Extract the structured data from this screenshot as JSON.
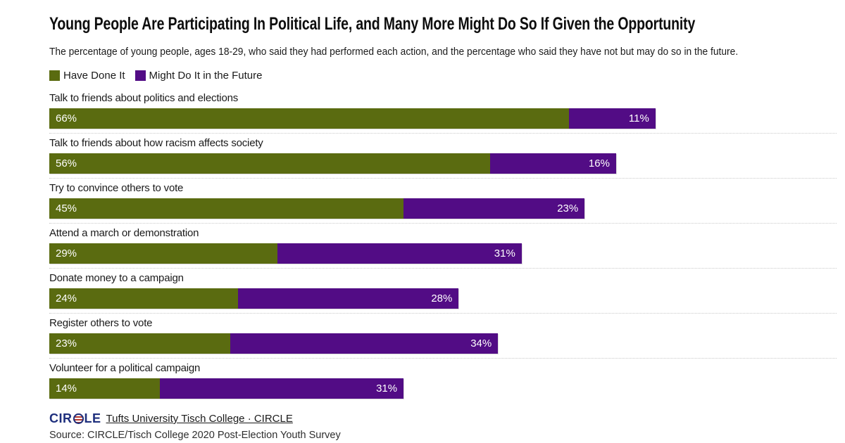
{
  "title": "Young People Are Participating In Political Life, and Many More Might Do So If Given the Opportunity",
  "subtitle": "The percentage of young people, ages 18-29, who said they had performed each action, and the percentage who said they have not but may do so in the future.",
  "legend": [
    {
      "label": "Have Done It",
      "color": "#5a6b10"
    },
    {
      "label": "Might Do It in the Future",
      "color": "#520c85"
    }
  ],
  "chart_data": {
    "type": "bar",
    "orientation": "horizontal",
    "stacked": true,
    "title": "Young People Are Participating In Political Life, and Many More Might Do So If Given the Opportunity",
    "categories": [
      "Talk to friends about politics and elections",
      "Talk to friends about how racism affects society",
      "Try to convince others to vote",
      "Attend a march or demonstration",
      "Donate money to a campaign",
      "Register others to vote",
      "Volunteer for a political campaign"
    ],
    "series": [
      {
        "name": "Have Done It",
        "color": "#5a6b10",
        "values": [
          66,
          56,
          45,
          29,
          24,
          23,
          14
        ]
      },
      {
        "name": "Might Do It in the Future",
        "color": "#520c85",
        "values": [
          11,
          16,
          23,
          31,
          28,
          34,
          31
        ]
      }
    ],
    "value_suffix": "%",
    "xlim": [
      0,
      100
    ],
    "grid": false,
    "legend_position": "top-left",
    "xlabel": "",
    "ylabel": ""
  },
  "colors": {
    "have_done_it": "#5a6b10",
    "might_do_it": "#520c85",
    "separator": "#c9c9c9",
    "logo_navy": "#1e2f7d",
    "logo_red": "#b6382e"
  },
  "footer": {
    "logo_left": "CIR",
    "logo_right": "LE",
    "link_label": "Tufts University Tisch College · CIRCLE",
    "source": "Source: CIRCLE/Tisch College 2020 Post-Election Youth Survey"
  }
}
